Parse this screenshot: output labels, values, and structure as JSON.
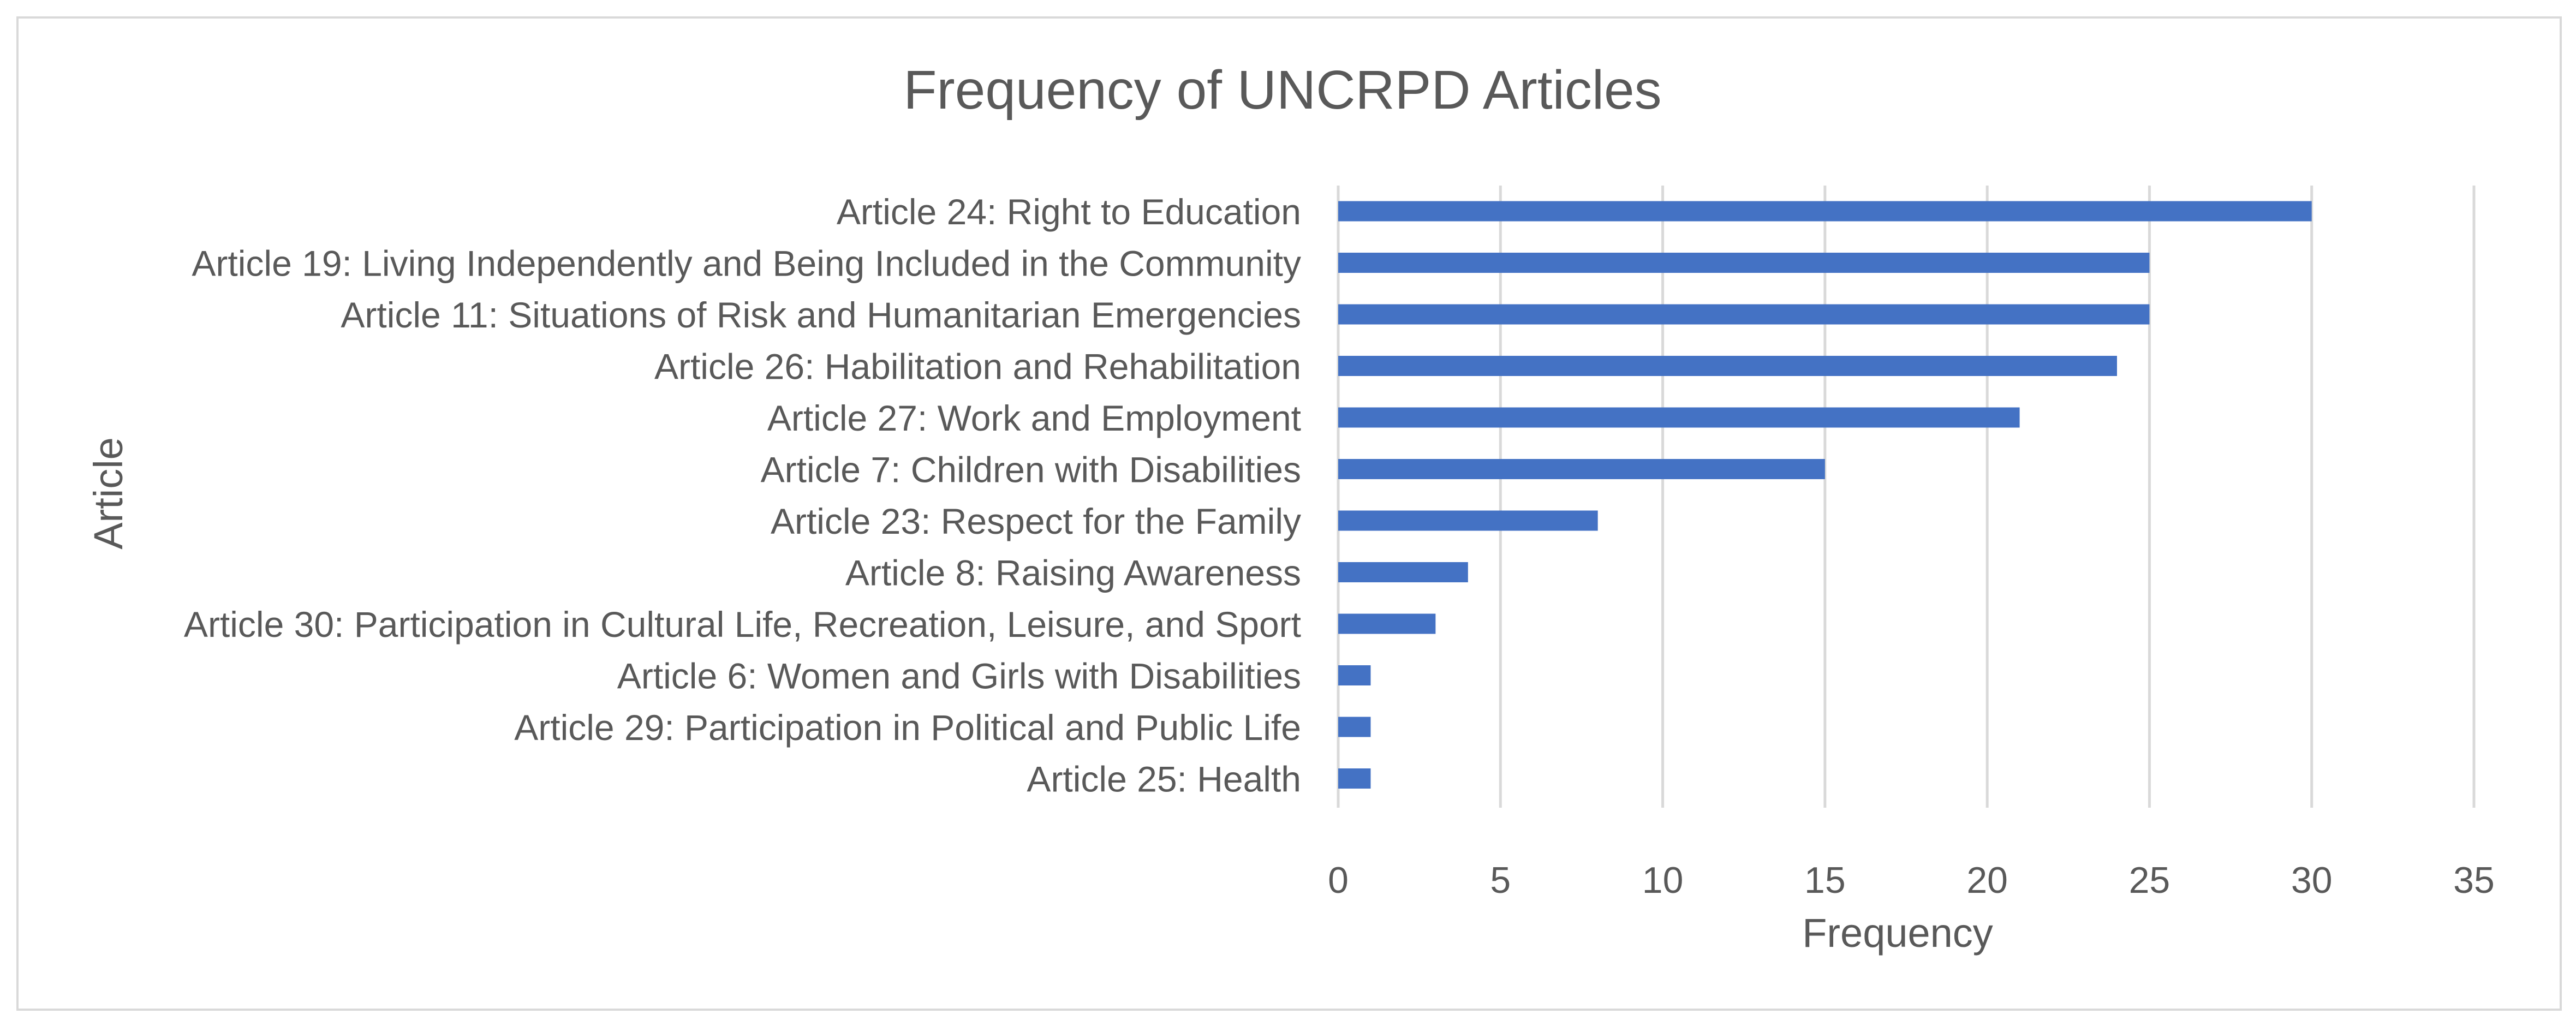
{
  "chart_data": {
    "type": "bar",
    "orientation": "horizontal",
    "title": "Frequency of UNCRPD Articles",
    "xlabel": "Frequency",
    "ylabel": "Article",
    "xlim": [
      0,
      35
    ],
    "xticks": [
      0,
      5,
      10,
      15,
      20,
      25,
      30,
      35
    ],
    "grid": true,
    "legend": "none",
    "bar_color": "#4472C4",
    "categories": [
      "Article 24: Right to Education",
      "Article 19: Living Independently and Being Included in the Community",
      "Article 11: Situations of Risk and Humanitarian Emergencies",
      "Article 26: Habilitation and Rehabilitation",
      "Article 27: Work and Employment",
      "Article 7: Children with Disabilities",
      "Article 23: Respect for the Family",
      "Article 8: Raising Awareness",
      "Article 30: Participation in Cultural Life, Recreation, Leisure, and Sport",
      "Article 6: Women and Girls with Disabilities",
      "Article 29: Participation in Political and Public Life",
      "Article 25: Health"
    ],
    "values": [
      30,
      25,
      25,
      24,
      21,
      15,
      8,
      4,
      3,
      1,
      1,
      1
    ]
  }
}
